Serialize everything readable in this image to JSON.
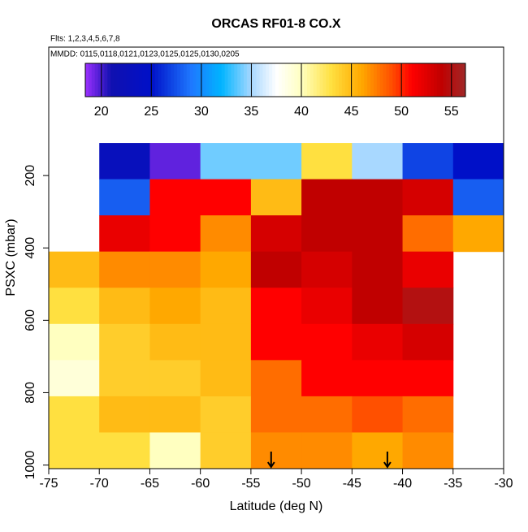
{
  "chart_data": {
    "type": "heatmap",
    "title": "ORCAS RF01-8 CO.X",
    "subtitle": "Flts: 1,2,3,4,5,6,7,8",
    "annotation": "MMDD: 0115,0118,0121,0123,0125,0125,0130,0205",
    "x_label": "Latitude (deg N)",
    "y_label": "PSXC (mbar)",
    "xlim": [
      -75,
      -30
    ],
    "xticks": [
      -75,
      -70,
      -65,
      -60,
      -55,
      -50,
      -45,
      -40,
      -35,
      -30
    ],
    "ylim": [
      1010,
      -155
    ],
    "yticks": [
      200,
      400,
      600,
      800,
      1000
    ],
    "xbins": [
      -75,
      -70,
      -65,
      -60,
      -55,
      -50,
      -45,
      -40,
      -35,
      -30
    ],
    "ybins": [
      110,
      210,
      310,
      410,
      510,
      610,
      710,
      810,
      910,
      1010
    ],
    "z": [
      [
        null,
        23,
        19.5,
        34,
        34,
        43,
        35,
        27,
        25
      ],
      [
        null,
        28,
        51,
        51,
        45,
        54,
        54,
        53,
        28
      ],
      [
        null,
        52,
        51,
        47,
        53,
        54,
        54,
        48,
        46
      ],
      [
        45,
        47,
        47,
        46,
        54,
        53,
        54,
        52,
        null
      ],
      [
        43,
        45,
        46,
        45,
        51,
        52,
        54,
        55,
        null
      ],
      [
        40,
        44,
        45,
        45,
        51,
        51,
        52,
        53,
        null
      ],
      [
        39,
        44,
        44,
        45,
        48,
        51,
        51,
        51,
        null
      ],
      [
        43,
        45,
        45,
        44,
        48,
        48,
        49,
        48,
        null
      ],
      [
        43,
        43,
        40,
        44,
        47,
        47,
        46,
        47,
        null
      ]
    ],
    "clim": [
      18.4,
      56.4
    ],
    "colorbar_ticks": [
      20,
      25,
      30,
      35,
      40,
      45,
      50,
      55
    ],
    "colorscale": [
      [
        18.4,
        "#9b30ff"
      ],
      [
        21,
        "#1010b0"
      ],
      [
        25,
        "#0010c8"
      ],
      [
        29,
        "#1e78ff"
      ],
      [
        32,
        "#00b4ff"
      ],
      [
        35,
        "#a8d8ff"
      ],
      [
        37.5,
        "#ffffff"
      ],
      [
        40,
        "#ffffc0"
      ],
      [
        43,
        "#ffe040"
      ],
      [
        46,
        "#ffa800"
      ],
      [
        49,
        "#ff5000"
      ],
      [
        51,
        "#ff0000"
      ],
      [
        54,
        "#c00000"
      ],
      [
        56.4,
        "#a02828"
      ]
    ],
    "markers_x": [
      -53,
      -41.5
    ]
  }
}
